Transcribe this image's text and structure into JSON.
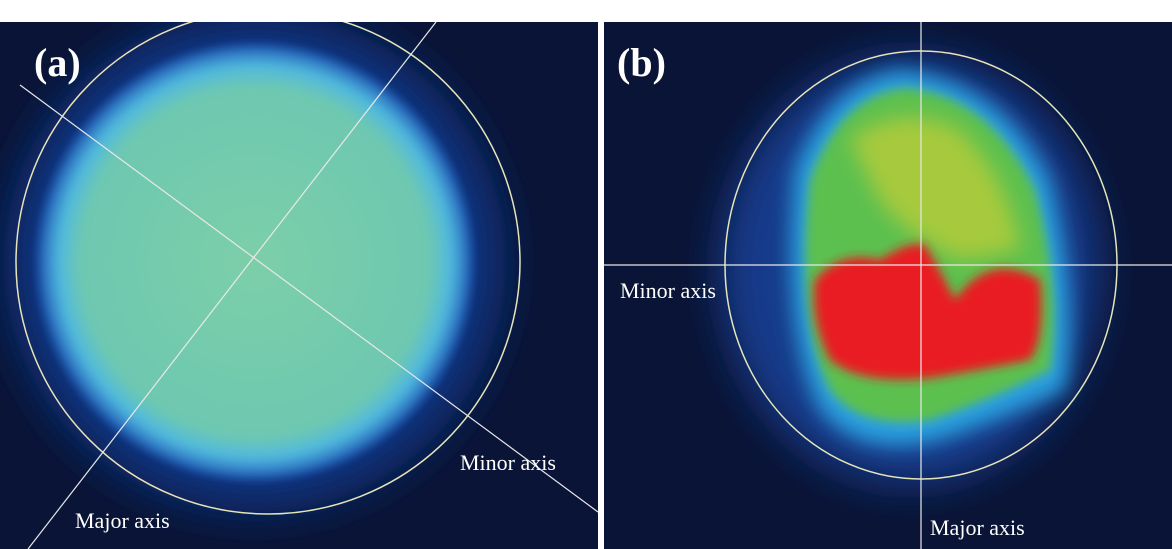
{
  "panels": [
    {
      "label": "(a)",
      "minor_axis": "Minor axis",
      "major_axis": "Major axis"
    },
    {
      "label": "(b)",
      "minor_axis": "Minor axis",
      "major_axis": "Major axis"
    }
  ]
}
